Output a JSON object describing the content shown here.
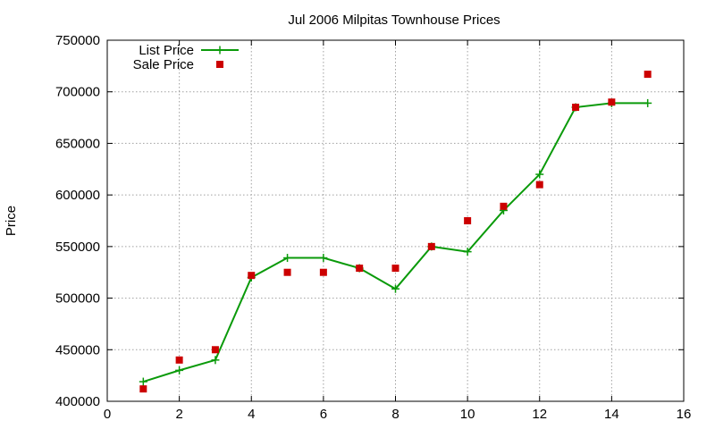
{
  "chart_data": {
    "type": "line",
    "title": "Jul 2006 Milpitas Townhouse Prices",
    "xlabel": "",
    "ylabel": "Price",
    "xlim": [
      0,
      16
    ],
    "ylim": [
      400000,
      750000
    ],
    "xticks": [
      0,
      2,
      4,
      6,
      8,
      10,
      12,
      14,
      16
    ],
    "yticks": [
      400000,
      450000,
      500000,
      550000,
      600000,
      650000,
      700000,
      750000
    ],
    "grid": true,
    "legend_position": "top-left",
    "series": [
      {
        "name": "List Price",
        "style": "line+cross",
        "color": "#0a9a0a",
        "points": [
          [
            1,
            419000
          ],
          [
            2,
            430000
          ],
          [
            3,
            440000
          ],
          [
            4,
            520000
          ],
          [
            5,
            539000
          ],
          [
            6,
            539000
          ],
          [
            7,
            529000
          ],
          [
            8,
            509000
          ],
          [
            9,
            550000
          ],
          [
            10,
            545000
          ],
          [
            11,
            585000
          ],
          [
            12,
            620000
          ],
          [
            13,
            685000
          ],
          [
            14,
            689000
          ],
          [
            15,
            689000
          ]
        ]
      },
      {
        "name": "Sale Price",
        "style": "square",
        "color": "#cc0000",
        "points": [
          [
            1,
            412000
          ],
          [
            2,
            440000
          ],
          [
            3,
            450000
          ],
          [
            4,
            522000
          ],
          [
            5,
            525000
          ],
          [
            6,
            525000
          ],
          [
            7,
            529000
          ],
          [
            8,
            529000
          ],
          [
            9,
            550000
          ],
          [
            10,
            575000
          ],
          [
            11,
            589000
          ],
          [
            12,
            610000
          ],
          [
            13,
            685000
          ],
          [
            14,
            690000
          ],
          [
            15,
            717000
          ]
        ]
      }
    ]
  }
}
